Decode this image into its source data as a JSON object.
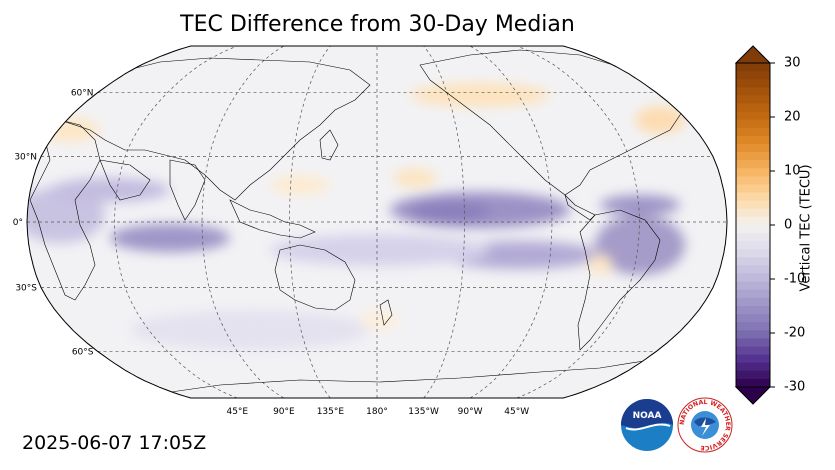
{
  "title": "TEC Difference from 30-Day Median",
  "timestamp": "2025-06-07 17:05Z",
  "map": {
    "projection": "robinson",
    "central_longitude": 180,
    "lat_labels": [
      "60°N",
      "30°N",
      "0°",
      "30°S",
      "60°S"
    ],
    "lon_labels": [
      "45°E",
      "90°E",
      "135°E",
      "180°",
      "135°W",
      "90°W",
      "45°W"
    ],
    "ocean_color": "#f2f2f5",
    "positive_color": "#fde7c6",
    "negative_color": "#b8b0d6",
    "strong_negative_color": "#8f84bd"
  },
  "colorbar": {
    "label": "Vertical TEC (TECU)",
    "min": -30,
    "max": 30,
    "tick_labels": [
      "30",
      "20",
      "10",
      "0",
      "-10",
      "-20",
      "-30"
    ],
    "top_color": "#7f3b08",
    "mid_color": "#f7f7f7",
    "bottom_color": "#2d004b"
  },
  "logos": {
    "noaa_text": "NOAA",
    "nws_text": "NATIONAL WEATHER SERVICE"
  }
}
